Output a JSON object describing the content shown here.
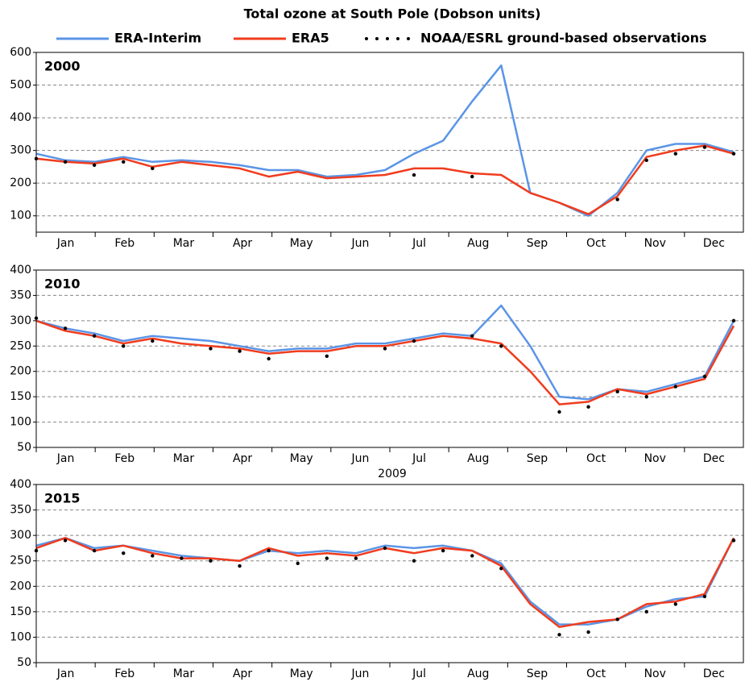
{
  "chart_data": [
    {
      "type": "line",
      "title": "Total ozone at South Pole (Dobson units)",
      "label": "2000",
      "x": [
        1,
        16,
        31,
        46,
        61,
        76,
        91,
        106,
        121,
        136,
        151,
        166,
        181,
        196,
        211,
        226,
        241,
        256,
        271,
        286,
        301,
        316,
        331,
        346,
        361
      ],
      "xlim": [
        1,
        366
      ],
      "categories": [
        "Jan",
        "Feb",
        "Mar",
        "Apr",
        "May",
        "Jun",
        "Jul",
        "Aug",
        "Sep",
        "Oct",
        "Nov",
        "Dec"
      ],
      "ylim": [
        50,
        600
      ],
      "yticks": [
        100,
        200,
        300,
        400,
        500,
        600
      ],
      "grid": true,
      "series": [
        {
          "name": "ERA-Interim",
          "color": "#5b95e6",
          "style": "line",
          "values": [
            290,
            270,
            265,
            280,
            265,
            270,
            265,
            255,
            240,
            240,
            220,
            225,
            240,
            290,
            330,
            450,
            560,
            170,
            140,
            100,
            170,
            300,
            320,
            320,
            295
          ]
        },
        {
          "name": "ERA5",
          "color": "#f03c1e",
          "style": "line",
          "values": [
            275,
            265,
            260,
            275,
            250,
            265,
            255,
            245,
            220,
            235,
            215,
            220,
            225,
            245,
            245,
            230,
            225,
            170,
            140,
            105,
            160,
            280,
            300,
            315,
            290
          ]
        },
        {
          "name": "NOAA/ESRL ground-based observations",
          "color": "#000000",
          "style": "dots",
          "values": [
            275,
            265,
            255,
            265,
            245,
            null,
            null,
            null,
            null,
            null,
            null,
            null,
            null,
            225,
            null,
            220,
            null,
            null,
            null,
            null,
            150,
            270,
            290,
            310,
            290
          ]
        }
      ]
    },
    {
      "type": "line",
      "label": "2010",
      "annotations": [
        "2009"
      ],
      "x": [
        1,
        16,
        31,
        46,
        61,
        76,
        91,
        106,
        121,
        136,
        151,
        166,
        181,
        196,
        211,
        226,
        241,
        256,
        271,
        286,
        301,
        316,
        331,
        346,
        361
      ],
      "xlim": [
        1,
        366
      ],
      "categories": [
        "Jan",
        "Feb",
        "Mar",
        "Apr",
        "May",
        "Jun",
        "Jul",
        "Aug",
        "Sep",
        "Oct",
        "Nov",
        "Dec"
      ],
      "ylim": [
        50,
        400
      ],
      "yticks": [
        50,
        100,
        150,
        200,
        250,
        300,
        350,
        400
      ],
      "grid": true,
      "series": [
        {
          "name": "ERA-Interim",
          "color": "#5b95e6",
          "style": "line",
          "values": [
            300,
            285,
            275,
            260,
            270,
            265,
            260,
            250,
            240,
            245,
            245,
            255,
            255,
            265,
            275,
            270,
            330,
            250,
            150,
            145,
            165,
            160,
            175,
            190,
            300
          ]
        },
        {
          "name": "ERA5",
          "color": "#f03c1e",
          "style": "line",
          "values": [
            300,
            280,
            270,
            255,
            265,
            255,
            250,
            245,
            235,
            240,
            240,
            250,
            250,
            260,
            270,
            265,
            255,
            200,
            135,
            140,
            165,
            155,
            170,
            185,
            290
          ]
        },
        {
          "name": "NOAA/ESRL ground-based observations",
          "color": "#000000",
          "style": "dots",
          "values": [
            305,
            285,
            270,
            250,
            260,
            null,
            245,
            240,
            225,
            null,
            230,
            null,
            245,
            260,
            null,
            270,
            250,
            null,
            120,
            130,
            160,
            150,
            170,
            190,
            300
          ]
        }
      ]
    },
    {
      "type": "line",
      "label": "2015",
      "x": [
        1,
        16,
        31,
        46,
        61,
        76,
        91,
        106,
        121,
        136,
        151,
        166,
        181,
        196,
        211,
        226,
        241,
        256,
        271,
        286,
        301,
        316,
        331,
        346,
        361
      ],
      "xlim": [
        1,
        366
      ],
      "categories": [
        "Jan",
        "Feb",
        "Mar",
        "Apr",
        "May",
        "Jun",
        "Jul",
        "Aug",
        "Sep",
        "Oct",
        "Nov",
        "Dec"
      ],
      "ylim": [
        50,
        400
      ],
      "yticks": [
        50,
        100,
        150,
        200,
        250,
        300,
        350,
        400
      ],
      "grid": true,
      "series": [
        {
          "name": "ERA-Interim",
          "color": "#5b95e6",
          "style": "line",
          "values": [
            280,
            295,
            275,
            280,
            270,
            260,
            255,
            250,
            270,
            265,
            270,
            265,
            280,
            275,
            280,
            270,
            245,
            170,
            125,
            125,
            135,
            160,
            175,
            180,
            295
          ]
        },
        {
          "name": "ERA5",
          "color": "#f03c1e",
          "style": "line",
          "values": [
            275,
            295,
            270,
            280,
            265,
            255,
            255,
            250,
            275,
            260,
            265,
            260,
            275,
            265,
            275,
            270,
            240,
            165,
            120,
            130,
            135,
            165,
            170,
            185,
            295
          ]
        },
        {
          "name": "NOAA/ESRL ground-based observations",
          "color": "#000000",
          "style": "dots",
          "values": [
            270,
            290,
            270,
            265,
            260,
            255,
            250,
            240,
            270,
            245,
            255,
            255,
            275,
            250,
            270,
            260,
            235,
            null,
            105,
            110,
            135,
            150,
            165,
            180,
            290
          ]
        }
      ]
    }
  ]
}
